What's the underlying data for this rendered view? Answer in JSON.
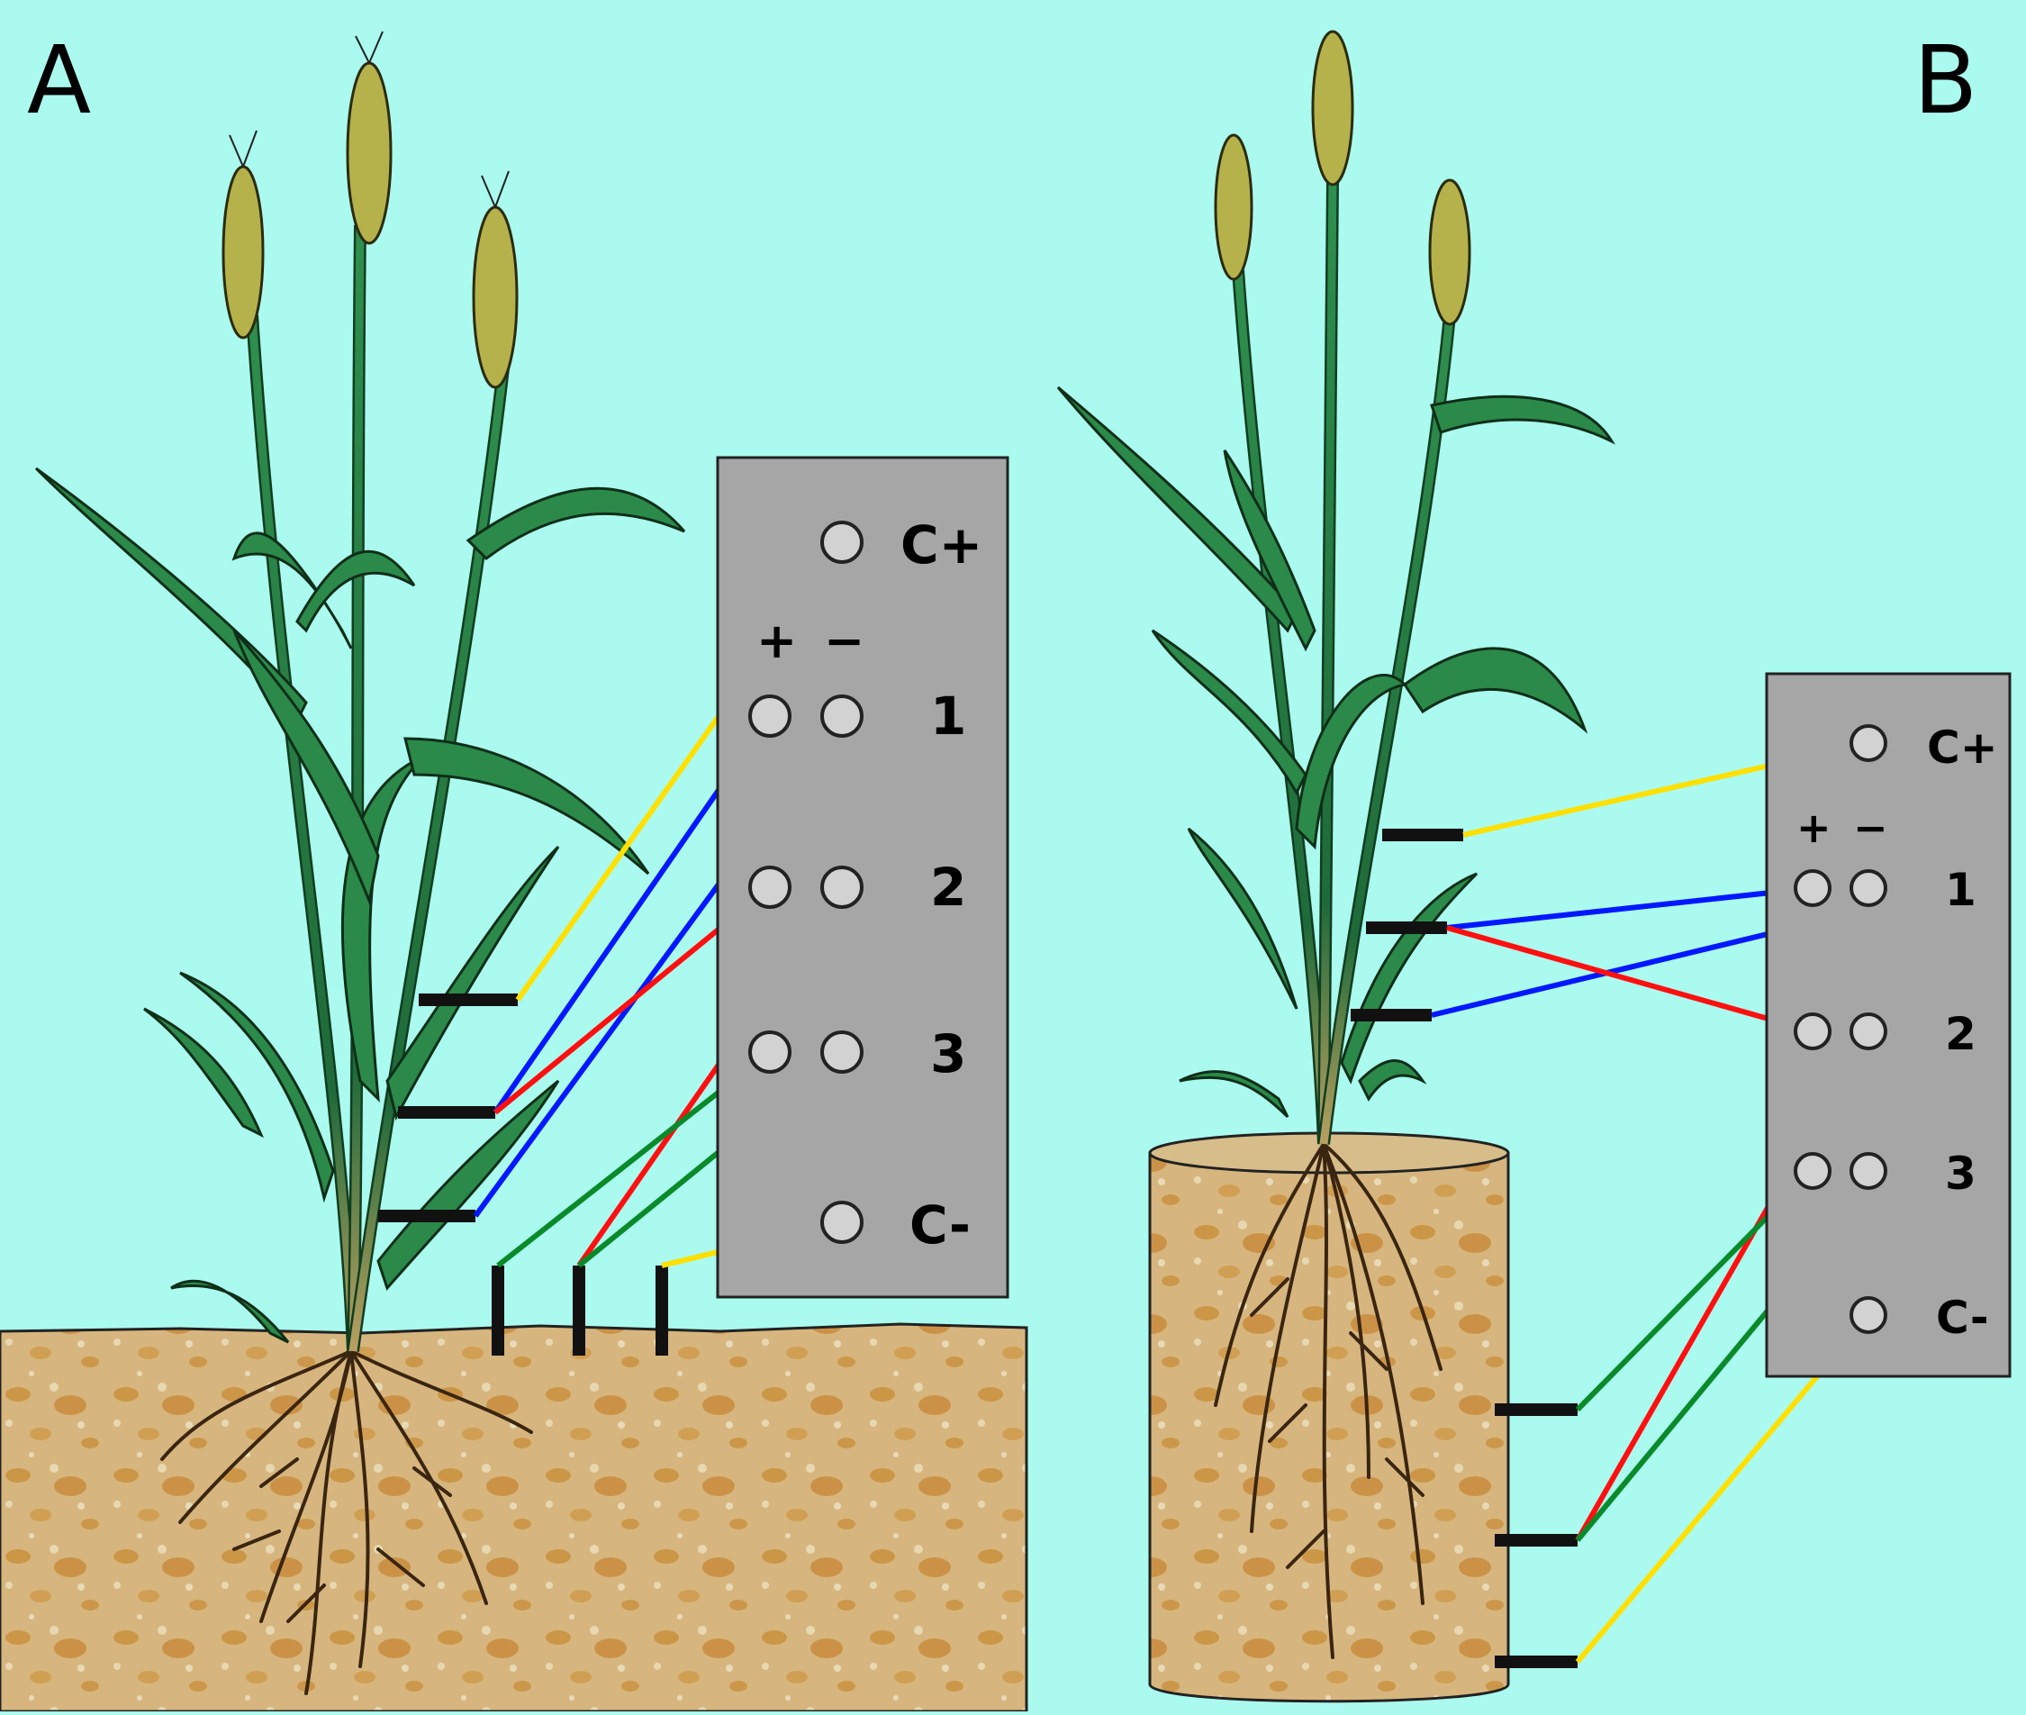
{
  "figure": {
    "panel_a": {
      "letter": "A"
    },
    "panel_b": {
      "letter": "B"
    }
  },
  "meter": {
    "terminal_labels": {
      "c_plus": "C+",
      "ch1": "1",
      "ch2": "2",
      "ch3": "3",
      "c_minus": "C-"
    },
    "polarity": {
      "plus": "+",
      "minus": "−"
    }
  },
  "colors": {
    "background": "#aafaef",
    "meter_panel": "#a6a6a6",
    "terminal": "#d2d2d2",
    "wire_current": "#ffe000",
    "wire_channel1": "#0018ff",
    "wire_channel2": "#ff1010",
    "wire_channel3": "#0a8a2a",
    "soil": "#d9b87f",
    "leaf": "#2b8a4a",
    "root": "#3a2510"
  }
}
